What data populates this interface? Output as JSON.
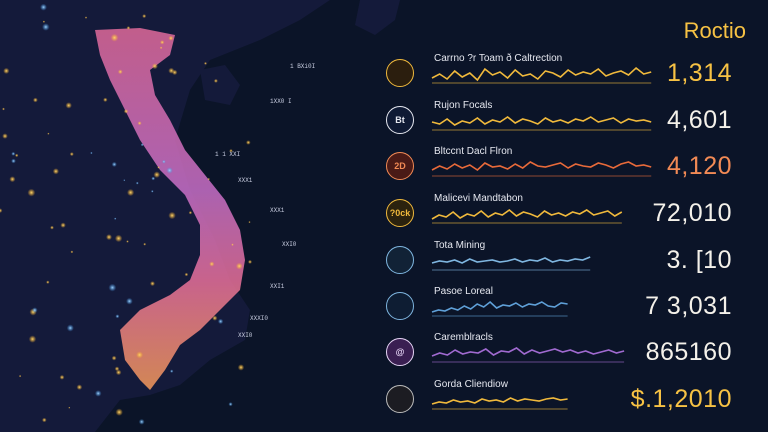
{
  "title": "Roctio",
  "map": {
    "tick_labels": [
      "1 BXi0I",
      "1XX0 I",
      "1 1 XXI",
      "XXX1",
      "XXX1",
      "XXI0",
      "XXI1",
      "XXXI0",
      "XXI0"
    ]
  },
  "rows": [
    {
      "badge": "",
      "label": "Carrno ?r Toam ð Caltrection",
      "value": "1,314",
      "value_color": "#f7c244",
      "line_color": "#f0b93c",
      "badge_bg": "#2b1e0e",
      "badge_fg": "#f0b93c",
      "spark": [
        5,
        9,
        4,
        12,
        6,
        10,
        3,
        14,
        8,
        11,
        5,
        13,
        7,
        9,
        4,
        12,
        10,
        6,
        13,
        8,
        11,
        9,
        14,
        7,
        10,
        12,
        8,
        15,
        9,
        11
      ],
      "line_len": 0.97
    },
    {
      "badge": "Bt",
      "label": "Rujon Focals",
      "value": "4,601",
      "value_color": "#f4f1ea",
      "line_color": "#f0b93c",
      "badge_bg": "#0f1a34",
      "badge_fg": "#e6e8f0",
      "spark": [
        8,
        6,
        11,
        5,
        9,
        7,
        12,
        6,
        10,
        8,
        13,
        7,
        11,
        9,
        6,
        12,
        8,
        10,
        7,
        11,
        9,
        13,
        8,
        10,
        12,
        7,
        11,
        9,
        10,
        8
      ],
      "line_len": 0.97
    },
    {
      "badge": "2D",
      "label": "Bltccnt Dacl Flron",
      "value": "4,120",
      "value_color": "#f28a55",
      "line_color": "#e86a3a",
      "badge_bg": "#4a1a16",
      "badge_fg": "#f28a55",
      "spark": [
        6,
        10,
        7,
        12,
        8,
        11,
        6,
        13,
        9,
        10,
        7,
        12,
        8,
        14,
        10,
        9,
        11,
        13,
        8,
        12,
        10,
        9,
        13,
        11,
        8,
        12,
        14,
        10,
        11,
        9
      ],
      "line_len": 0.97
    },
    {
      "badge": "?0ck",
      "label": "Malicevi Mandtabon",
      "value": "72,010",
      "value_color": "#f4f1ea",
      "line_color": "#f0b93c",
      "badge_bg": "#2b220e",
      "badge_fg": "#f0b93c",
      "spark": [
        4,
        8,
        6,
        11,
        5,
        9,
        7,
        12,
        6,
        10,
        8,
        13,
        7,
        11,
        9,
        6,
        12,
        8,
        10,
        7,
        11,
        9,
        13,
        8,
        10,
        12,
        7,
        11
      ],
      "line_len": 0.84
    },
    {
      "badge": "",
      "label": "Tota Mining",
      "value": "3. [10",
      "value_color": "#f4f1ea",
      "line_color": "#7fb6e0",
      "badge_bg": "#112236",
      "badge_fg": "#7fb6e0",
      "spark": [
        7,
        9,
        8,
        10,
        7,
        11,
        8,
        9,
        10,
        8,
        9,
        11,
        8,
        10,
        9,
        12,
        8,
        10,
        9,
        11,
        10,
        13
      ],
      "line_len": 0.7
    },
    {
      "badge": "",
      "label": "Pasoe Loreal",
      "value": "7 3,031",
      "value_color": "#f4f1ea",
      "line_color": "#5fa0d8",
      "badge_bg": "#0e1d33",
      "badge_fg": "#7fb6e0",
      "spark": [
        4,
        6,
        5,
        8,
        6,
        10,
        7,
        12,
        9,
        14,
        8,
        11,
        10,
        13,
        9,
        12,
        11,
        14,
        10,
        9,
        13,
        12
      ],
      "line_len": 0.6
    },
    {
      "badge": "@",
      "label": "Caremblracls",
      "value": "865160",
      "value_color": "#f4f1ea",
      "line_color": "#a06ad0",
      "badge_bg": "#3a1f52",
      "badge_fg": "#e6d4f5",
      "spark": [
        6,
        9,
        7,
        12,
        8,
        10,
        9,
        13,
        7,
        11,
        10,
        14,
        8,
        12,
        9,
        11,
        13,
        10,
        12,
        9,
        11,
        8,
        10,
        12,
        9,
        11
      ],
      "line_len": 0.85
    },
    {
      "badge": "",
      "label": "Gorda Cliendiow",
      "value": "$.1,2010",
      "value_color": "#f7c244",
      "line_color": "#f0b93c",
      "badge_bg": "#1c1c22",
      "badge_fg": "#bbbbbb",
      "spark": [
        5,
        7,
        6,
        9,
        7,
        8,
        6,
        10,
        8,
        9,
        7,
        11,
        8,
        10,
        9,
        8,
        10,
        11,
        9,
        10
      ],
      "line_len": 0.6
    }
  ]
}
